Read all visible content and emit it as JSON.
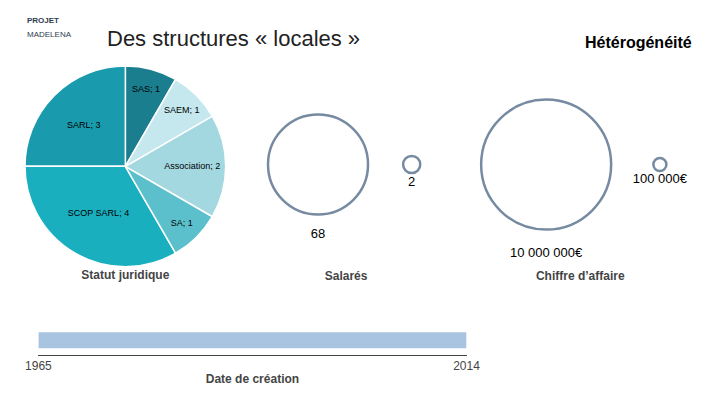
{
  "chart_data": [
    {
      "type": "pie",
      "title": "Statut juridique",
      "categories": [
        "SAS; 1",
        "SARL; 3",
        "SCOP SARL; 4",
        "SA; 1",
        "Association; 2",
        "SAEM; 1"
      ],
      "values": [
        1,
        3,
        4,
        1,
        2,
        1
      ],
      "colors": [
        "#1A7E8F",
        "#1A9BAD",
        "#1AAFBF",
        "#5BC0CC",
        "#A3D8E0",
        "#C5E8EE"
      ],
      "data_labels": true,
      "annotations": [
        "Des structures « locales »",
        "Hétérogénéité",
        "PROJET",
        "MADELENA"
      ]
    },
    {
      "type": "bubble",
      "title": "Salarés",
      "values": [
        68,
        2
      ],
      "color": "#3D5A7A",
      "data_labels": true,
      "tick_labels": false
    },
    {
      "type": "bubble",
      "title": "Chiffre d’affaire",
      "values": [
        10000000,
        100000
      ],
      "value_labels": [
        "10 000 000€",
        "100 000€"
      ],
      "color": "#3D5A7A",
      "data_labels": true,
      "tick_labels": false
    },
    {
      "type": "timeline",
      "x": [
        1965,
        2014
      ],
      "xlim": [
        1965,
        2014
      ],
      "xticks": [
        1965,
        2014
      ],
      "xlabel": "Date de création",
      "color": "#A8C4E0"
    }
  ]
}
